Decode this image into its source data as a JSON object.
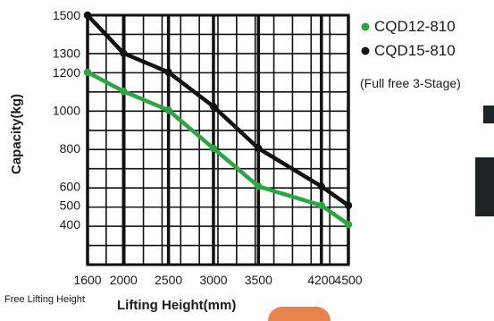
{
  "chart_data": {
    "type": "line",
    "xlabel": "Lifting Height(mm)",
    "x_sublabel": "Free Lifting Height",
    "ylabel": "Capacity(kg)",
    "x_ticks": [
      1600,
      2000,
      2500,
      3000,
      3500,
      4200,
      4500
    ],
    "y_ticks": [
      1500,
      1300,
      1200,
      1000,
      800,
      600,
      500,
      400
    ],
    "grid": true,
    "legend_position": "right",
    "legend_note": "(Full free 3-Stage)",
    "series": [
      {
        "name": "CQD12-810",
        "color": "#29a840",
        "x": [
          1600,
          2000,
          2500,
          3000,
          3500,
          4200,
          4500
        ],
        "y": [
          1200,
          1100,
          1000,
          800,
          600,
          500,
          400
        ]
      },
      {
        "name": "CQD15-810",
        "color": "#111111",
        "x": [
          1600,
          2000,
          2500,
          3000,
          3500,
          4200,
          4500
        ],
        "y": [
          1500,
          1300,
          1200,
          1020,
          800,
          600,
          500
        ]
      }
    ]
  }
}
